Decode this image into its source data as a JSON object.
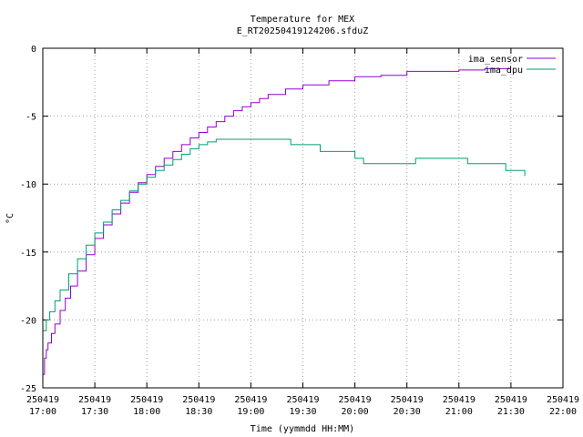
{
  "chart_data": {
    "type": "line",
    "title": "Temperature for MEX",
    "subtitle": "E_RT20250419124206.sfduZ",
    "xlabel": "Time (yymmdd HH:MM)",
    "ylabel": "°C",
    "xlim": [
      "2025-04-19 17:00",
      "2025-04-19 22:00"
    ],
    "ylim": [
      -25,
      0
    ],
    "x_ticks": [
      {
        "date": "250419",
        "time": "17:00"
      },
      {
        "date": "250419",
        "time": "17:30"
      },
      {
        "date": "250419",
        "time": "18:00"
      },
      {
        "date": "250419",
        "time": "18:30"
      },
      {
        "date": "250419",
        "time": "19:00"
      },
      {
        "date": "250419",
        "time": "19:30"
      },
      {
        "date": "250419",
        "time": "20:00"
      },
      {
        "date": "250419",
        "time": "20:30"
      },
      {
        "date": "250419",
        "time": "21:00"
      },
      {
        "date": "250419",
        "time": "21:30"
      },
      {
        "date": "250419",
        "time": "22:00"
      }
    ],
    "y_ticks": [
      "0",
      "-5",
      "-10",
      "-15",
      "-20",
      "-25"
    ],
    "grid": true,
    "legend_position": "top-right",
    "series": [
      {
        "name": "ima_sensor",
        "color": "#9400d3",
        "points": [
          [
            "2025-04-19 17:00",
            -24.0
          ],
          [
            "2025-04-19 17:01",
            -22.8
          ],
          [
            "2025-04-19 17:02",
            -22.2
          ],
          [
            "2025-04-19 17:03",
            -21.7
          ],
          [
            "2025-04-19 17:05",
            -21.0
          ],
          [
            "2025-04-19 17:07",
            -20.3
          ],
          [
            "2025-04-19 17:10",
            -19.3
          ],
          [
            "2025-04-19 17:13",
            -18.4
          ],
          [
            "2025-04-19 17:16",
            -17.5
          ],
          [
            "2025-04-19 17:20",
            -16.4
          ],
          [
            "2025-04-19 17:25",
            -15.2
          ],
          [
            "2025-04-19 17:30",
            -14.0
          ],
          [
            "2025-04-19 17:35",
            -13.0
          ],
          [
            "2025-04-19 17:40",
            -12.2
          ],
          [
            "2025-04-19 17:45",
            -11.4
          ],
          [
            "2025-04-19 17:50",
            -10.6
          ],
          [
            "2025-04-19 17:55",
            -9.9
          ],
          [
            "2025-04-19 18:00",
            -9.3
          ],
          [
            "2025-04-19 18:05",
            -8.7
          ],
          [
            "2025-04-19 18:10",
            -8.1
          ],
          [
            "2025-04-19 18:15",
            -7.6
          ],
          [
            "2025-04-19 18:20",
            -7.1
          ],
          [
            "2025-04-19 18:25",
            -6.6
          ],
          [
            "2025-04-19 18:30",
            -6.2
          ],
          [
            "2025-04-19 18:35",
            -5.8
          ],
          [
            "2025-04-19 18:40",
            -5.4
          ],
          [
            "2025-04-19 18:45",
            -5.0
          ],
          [
            "2025-04-19 18:50",
            -4.6
          ],
          [
            "2025-04-19 18:55",
            -4.3
          ],
          [
            "2025-04-19 19:00",
            -4.0
          ],
          [
            "2025-04-19 19:05",
            -3.7
          ],
          [
            "2025-04-19 19:10",
            -3.4
          ],
          [
            "2025-04-19 19:20",
            -3.0
          ],
          [
            "2025-04-19 19:30",
            -2.7
          ],
          [
            "2025-04-19 19:45",
            -2.4
          ],
          [
            "2025-04-19 20:00",
            -2.1
          ],
          [
            "2025-04-19 20:15",
            -2.0
          ],
          [
            "2025-04-19 20:30",
            -1.7
          ],
          [
            "2025-04-19 20:45",
            -1.7
          ],
          [
            "2025-04-19 21:00",
            -1.6
          ],
          [
            "2025-04-19 21:15",
            -1.5
          ],
          [
            "2025-04-19 21:30",
            -1.5
          ]
        ]
      },
      {
        "name": "ima_dpu",
        "color": "#009e73",
        "points": [
          [
            "2025-04-19 17:00",
            -20.8
          ],
          [
            "2025-04-19 17:02",
            -20.0
          ],
          [
            "2025-04-19 17:04",
            -19.4
          ],
          [
            "2025-04-19 17:07",
            -18.6
          ],
          [
            "2025-04-19 17:10",
            -17.8
          ],
          [
            "2025-04-19 17:15",
            -16.6
          ],
          [
            "2025-04-19 17:20",
            -15.5
          ],
          [
            "2025-04-19 17:25",
            -14.5
          ],
          [
            "2025-04-19 17:30",
            -13.6
          ],
          [
            "2025-04-19 17:35",
            -12.8
          ],
          [
            "2025-04-19 17:40",
            -11.9
          ],
          [
            "2025-04-19 17:45",
            -11.2
          ],
          [
            "2025-04-19 17:50",
            -10.5
          ],
          [
            "2025-04-19 17:55",
            -10.0
          ],
          [
            "2025-04-19 18:00",
            -9.5
          ],
          [
            "2025-04-19 18:05",
            -9.0
          ],
          [
            "2025-04-19 18:10",
            -8.6
          ],
          [
            "2025-04-19 18:15",
            -8.2
          ],
          [
            "2025-04-19 18:20",
            -7.8
          ],
          [
            "2025-04-19 18:25",
            -7.4
          ],
          [
            "2025-04-19 18:30",
            -7.1
          ],
          [
            "2025-04-19 18:35",
            -6.9
          ],
          [
            "2025-04-19 18:40",
            -6.7
          ],
          [
            "2025-04-19 19:00",
            -6.7
          ],
          [
            "2025-04-19 19:20",
            -6.7
          ],
          [
            "2025-04-19 19:23",
            -7.1
          ],
          [
            "2025-04-19 19:35",
            -7.1
          ],
          [
            "2025-04-19 19:40",
            -7.6
          ],
          [
            "2025-04-19 19:50",
            -7.6
          ],
          [
            "2025-04-19 20:00",
            -8.1
          ],
          [
            "2025-04-19 20:05",
            -8.5
          ],
          [
            "2025-04-19 20:30",
            -8.5
          ],
          [
            "2025-04-19 20:35",
            -8.1
          ],
          [
            "2025-04-19 21:00",
            -8.1
          ],
          [
            "2025-04-19 21:05",
            -8.5
          ],
          [
            "2025-04-19 21:25",
            -8.5
          ],
          [
            "2025-04-19 21:27",
            -9.0
          ],
          [
            "2025-04-19 21:37",
            -9.0
          ],
          [
            "2025-04-19 21:38",
            -9.4
          ]
        ]
      }
    ]
  }
}
